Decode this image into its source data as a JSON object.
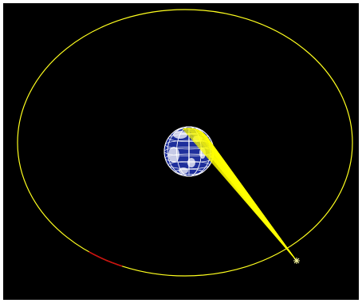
{
  "scene": {
    "colors": {
      "background": "#000000",
      "frame": "#ffffff",
      "orbit": "#ffff1e",
      "orbit_arc_segment": "#cc1010",
      "earth_ocean": "#1e2f9c",
      "earth_grid": "#ffffff",
      "footprint": "#ffff00",
      "satellite": "#ffffa0"
    },
    "icons": {
      "satellite": "satellite-marker-icon"
    }
  }
}
